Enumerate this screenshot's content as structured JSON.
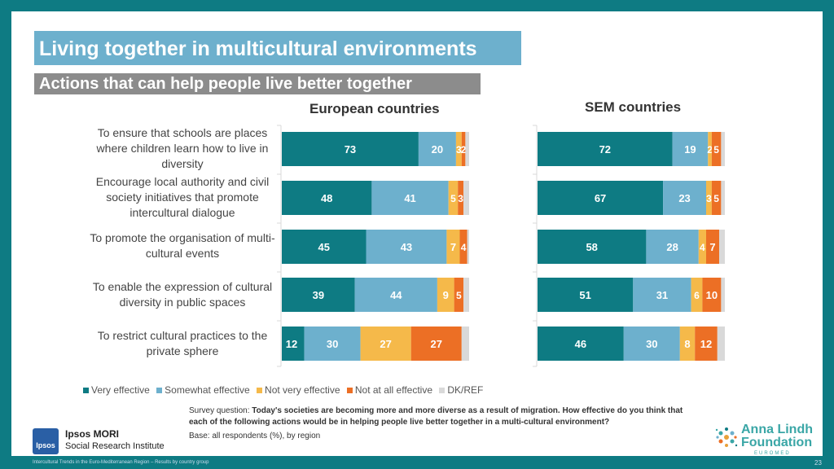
{
  "title": "Living together in multicultural environments",
  "subtitle": "Actions that can help people live better together",
  "chart_data": {
    "type": "bar",
    "orientation": "horizontal",
    "stacked": true,
    "categories": [
      "To ensure that schools are places where children learn how to live in diversity",
      "Encourage local authority and civil society initiatives that promote intercultural dialogue",
      "To promote the organisation of multi-cultural events",
      "To enable the expression of cultural diversity in public spaces",
      "To restrict cultural practices to the private sphere"
    ],
    "category_lines": [
      [
        "To ensure that schools are places",
        "where children learn how to live in",
        "diversity"
      ],
      [
        "Encourage local authority and civil",
        "society initiatives that promote",
        "intercultural dialogue"
      ],
      [
        "To promote the organisation of multi-",
        "cultural events"
      ],
      [
        "To enable the expression of cultural",
        "diversity in public spaces"
      ],
      [
        "To restrict cultural practices to the",
        "private sphere"
      ]
    ],
    "panels": [
      {
        "title": "European countries",
        "series": [
          {
            "name": "Very effective",
            "values": [
              73,
              48,
              45,
              39,
              12
            ]
          },
          {
            "name": "Somewhat effective",
            "values": [
              20,
              41,
              43,
              44,
              30
            ]
          },
          {
            "name": "Not very effective",
            "values": [
              3,
              5,
              7,
              9,
              27
            ]
          },
          {
            "name": "Not at all effective",
            "values": [
              2,
              3,
              4,
              5,
              27
            ]
          },
          {
            "name": "DK/REF",
            "values": [
              2,
              3,
              1,
              3,
              4
            ]
          }
        ]
      },
      {
        "title": "SEM countries",
        "series": [
          {
            "name": "Very effective",
            "values": [
              72,
              67,
              58,
              51,
              46
            ]
          },
          {
            "name": "Somewhat effective",
            "values": [
              19,
              23,
              28,
              31,
              30
            ]
          },
          {
            "name": "Not very effective",
            "values": [
              2,
              3,
              4,
              6,
              8
            ]
          },
          {
            "name": "Not at all effective",
            "values": [
              5,
              5,
              7,
              10,
              12
            ]
          },
          {
            "name": "DK/REF",
            "values": [
              2,
              2,
              3,
              2,
              4
            ]
          }
        ]
      }
    ],
    "colors": [
      "#0e7b83",
      "#6db0cd",
      "#f5b94a",
      "#ec6f25",
      "#d9d9d9"
    ],
    "xlim": [
      0,
      100
    ],
    "legend_position": "bottom-left"
  },
  "legend": [
    "Very effective",
    "Somewhat effective",
    "Not very effective",
    "Not at all effective",
    "DK/REF"
  ],
  "survey": {
    "prefix": "Survey question: ",
    "question": "Today's societies are becoming more and more diverse as a result of migration. How effective do you think that each of the following actions would be in helping people live better together in a multi-cultural environment?",
    "base": "Base: all respondents (%), by region"
  },
  "ipsos": {
    "logo": "Ipsos",
    "name": "Ipsos MORI",
    "sub": "Social Research Institute"
  },
  "alf": {
    "line1": "Anna Lindh",
    "line2": "Foundation",
    "line3": "EUROMED"
  },
  "footer": "Intercultural Trends in the Euro-Mediterranean Region – Results by country group",
  "page_number": "23"
}
